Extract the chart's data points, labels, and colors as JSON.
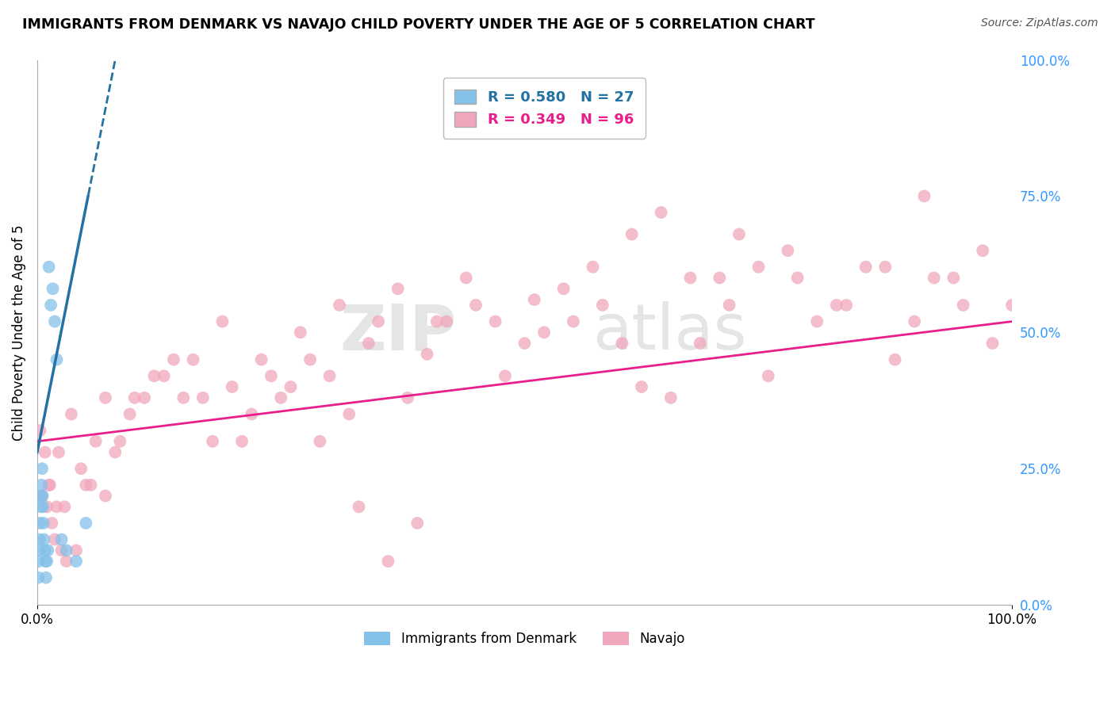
{
  "title": "IMMIGRANTS FROM DENMARK VS NAVAJO CHILD POVERTY UNDER THE AGE OF 5 CORRELATION CHART",
  "source": "Source: ZipAtlas.com",
  "ylabel": "Child Poverty Under the Age of 5",
  "watermark_zip": "ZIP",
  "watermark_atlas": "atlas",
  "blue_R": 0.58,
  "blue_N": 27,
  "pink_R": 0.349,
  "pink_N": 96,
  "blue_color": "#85c1e9",
  "pink_color": "#f1a7bb",
  "blue_line_color": "#2471a3",
  "pink_line_color": "#e91e8c",
  "blue_scatter_x": [
    0.1,
    0.15,
    0.2,
    0.25,
    0.3,
    0.35,
    0.4,
    0.45,
    0.5,
    0.55,
    0.6,
    0.65,
    0.7,
    0.8,
    0.85,
    0.9,
    1.0,
    1.1,
    1.2,
    1.4,
    1.6,
    1.8,
    2.0,
    2.5,
    3.0,
    4.0,
    5.0
  ],
  "blue_scatter_y": [
    5,
    8,
    10,
    12,
    15,
    18,
    20,
    22,
    25,
    20,
    18,
    15,
    12,
    10,
    8,
    5,
    8,
    10,
    62,
    55,
    58,
    52,
    45,
    12,
    10,
    8,
    15
  ],
  "pink_scatter_x": [
    0.3,
    0.5,
    0.8,
    1.0,
    1.2,
    1.5,
    1.8,
    2.0,
    2.5,
    3.0,
    4.0,
    5.0,
    6.0,
    7.0,
    8.0,
    10.0,
    12.0,
    15.0,
    18.0,
    20.0,
    22.0,
    25.0,
    28.0,
    30.0,
    32.0,
    35.0,
    38.0,
    40.0,
    42.0,
    45.0,
    48.0,
    50.0,
    52.0,
    55.0,
    58.0,
    60.0,
    62.0,
    65.0,
    68.0,
    70.0,
    72.0,
    75.0,
    78.0,
    80.0,
    82.0,
    85.0,
    88.0,
    90.0,
    92.0,
    95.0,
    98.0,
    100.0,
    1.3,
    2.2,
    3.5,
    5.5,
    8.5,
    11.0,
    14.0,
    17.0,
    21.0,
    24.0,
    27.0,
    31.0,
    34.0,
    37.0,
    41.0,
    44.0,
    47.0,
    51.0,
    54.0,
    57.0,
    61.0,
    64.0,
    67.0,
    71.0,
    74.0,
    77.0,
    83.0,
    87.0,
    91.0,
    94.0,
    97.0,
    2.8,
    4.5,
    7.0,
    9.5,
    13.0,
    16.0,
    19.0,
    23.0,
    26.0,
    29.0,
    33.0,
    36.0,
    39.0
  ],
  "pink_scatter_y": [
    32,
    20,
    28,
    18,
    22,
    15,
    12,
    18,
    10,
    8,
    10,
    22,
    30,
    20,
    28,
    38,
    42,
    38,
    30,
    40,
    35,
    38,
    45,
    42,
    35,
    52,
    38,
    46,
    52,
    55,
    42,
    48,
    50,
    52,
    55,
    48,
    40,
    38,
    48,
    60,
    68,
    42,
    60,
    52,
    55,
    62,
    45,
    52,
    60,
    55,
    48,
    55,
    22,
    28,
    35,
    22,
    30,
    38,
    45,
    38,
    30,
    42,
    50,
    55,
    48,
    58,
    52,
    60,
    52,
    56,
    58,
    62,
    68,
    72,
    60,
    55,
    62,
    65,
    55,
    62,
    75,
    60,
    65,
    18,
    25,
    38,
    35,
    42,
    45,
    52,
    45,
    40,
    30,
    18,
    8,
    15
  ],
  "xlim": [
    0,
    100
  ],
  "ylim": [
    0,
    100
  ],
  "yticks": [
    0,
    25,
    50,
    75,
    100
  ],
  "ytick_labels": [
    "0.0%",
    "25.0%",
    "50.0%",
    "75.0%",
    "100.0%"
  ],
  "xtick_labels": [
    "0.0%",
    "100.0%"
  ],
  "grid_color": "#cccccc",
  "bg_color": "#ffffff",
  "legend_blue_label": "Immigrants from Denmark",
  "legend_pink_label": "Navajo",
  "blue_line_intercept": 28.0,
  "blue_line_slope": 9.0,
  "pink_line_intercept": 30.0,
  "pink_line_slope": 0.22
}
